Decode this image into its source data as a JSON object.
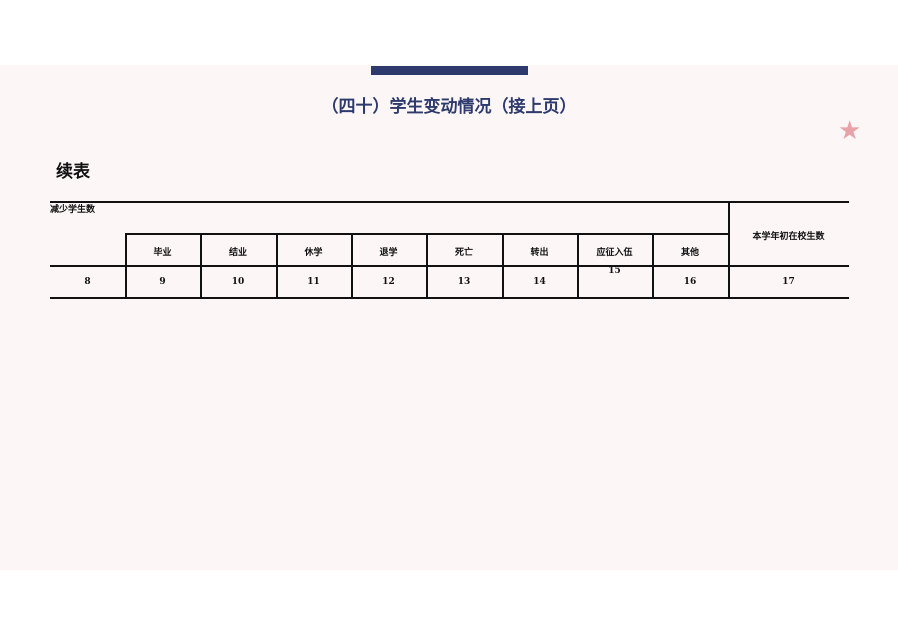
{
  "title": "（四十）学生变动情况（接上页）",
  "subtitle": "续表",
  "table": {
    "group_header": "减少学生数",
    "right_header": "本学年初在校生数",
    "columns": [
      "毕业",
      "结业",
      "休学",
      "退学",
      "死亡",
      "转出",
      "应征入伍",
      "其他"
    ],
    "numbers": [
      "8",
      "9",
      "10",
      "11",
      "12",
      "13",
      "14",
      "15",
      "16",
      "17"
    ]
  },
  "colors": {
    "accent": "#2e3a6e",
    "star": "#e8a3a8"
  }
}
